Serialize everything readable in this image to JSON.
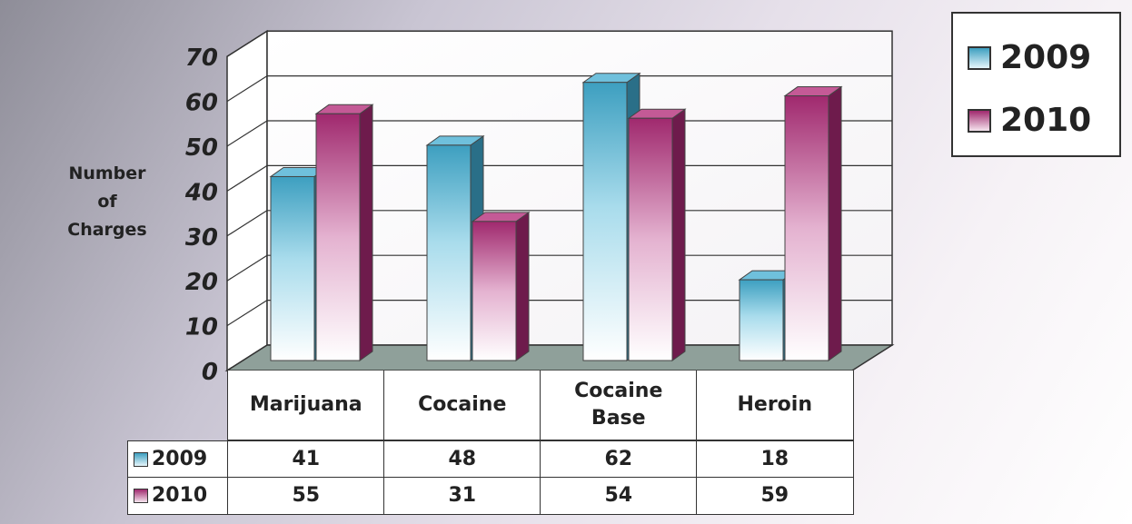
{
  "chart_data": {
    "type": "bar",
    "style": "3d-clustered-column",
    "categories": [
      "Marijuana",
      "Cocaine",
      "Cocaine\nBase",
      "Heroin"
    ],
    "series": [
      {
        "name": "2009",
        "values": [
          41,
          48,
          62,
          18
        ],
        "color": "#3d9fc0"
      },
      {
        "name": "2010",
        "values": [
          55,
          31,
          54,
          59
        ],
        "color": "#a0296e"
      }
    ],
    "ylabel": "Number\nof\nCharges",
    "ylim": [
      0,
      70
    ],
    "yticks": [
      "0",
      "10",
      "20",
      "30",
      "40",
      "50",
      "60",
      "70"
    ],
    "grid": true,
    "legend_position": "top-right",
    "data_table": true
  }
}
